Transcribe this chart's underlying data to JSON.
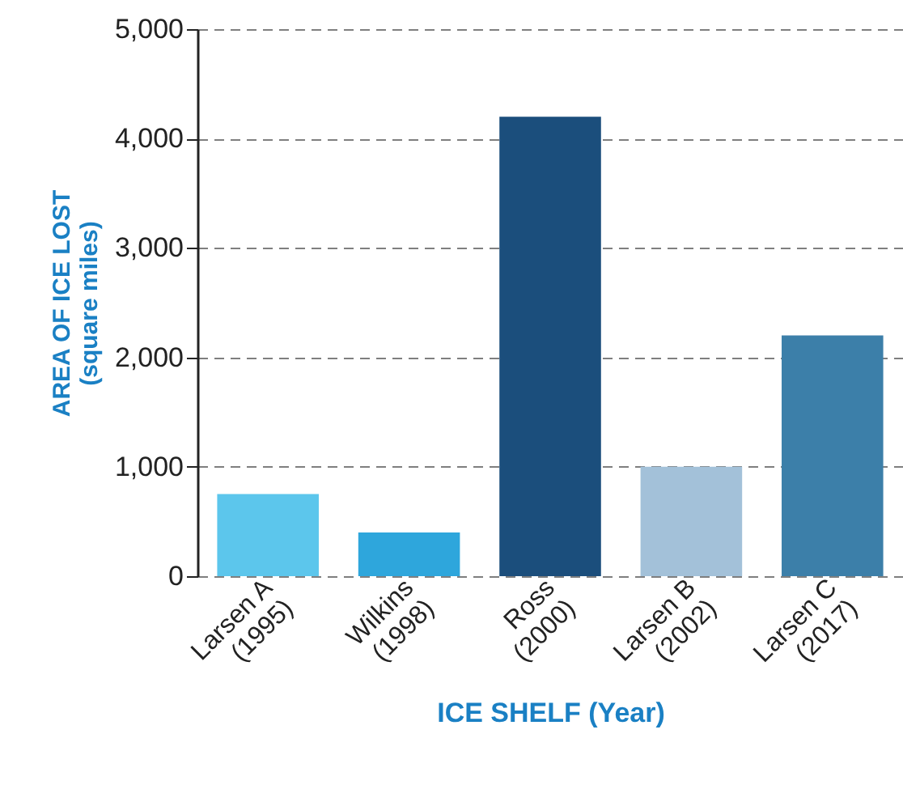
{
  "chart_data": {
    "type": "bar",
    "xlabel": "ICE SHELF (Year)",
    "ylabel": "AREA OF ICE LOST\n(square miles)",
    "categories": [
      "Larsen A\n(1995)",
      "Wilkins\n(1998)",
      "Ross\n(2000)",
      "Larsen B\n(2002)",
      "Larsen C\n(2017)"
    ],
    "values": [
      750,
      400,
      4200,
      1000,
      2200
    ],
    "colors": [
      "#5cc6ec",
      "#2ea6dc",
      "#1b4e7c",
      "#a3c1d9",
      "#3c7fa9"
    ],
    "ylim": [
      0,
      5000
    ],
    "yticks": [
      {
        "value": 0,
        "label": "0"
      },
      {
        "value": 1000,
        "label": "1,000"
      },
      {
        "value": 2000,
        "label": "2,000"
      },
      {
        "value": 3000,
        "label": "3,000"
      },
      {
        "value": 4000,
        "label": "4,000"
      },
      {
        "value": 5000,
        "label": "5,000"
      }
    ],
    "grid": "y"
  }
}
